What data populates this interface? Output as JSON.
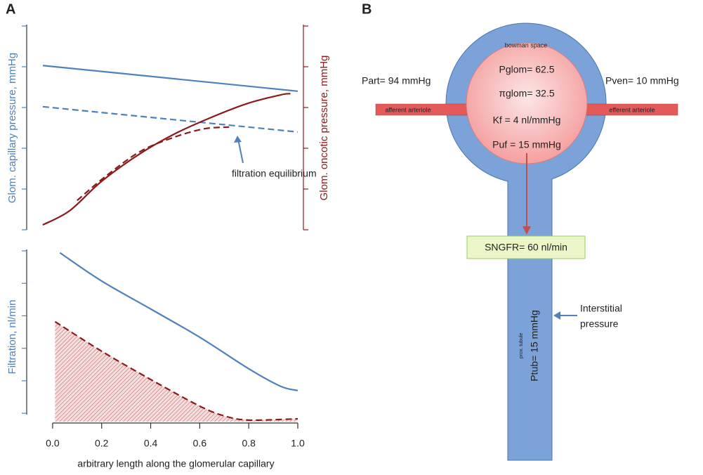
{
  "panels": [
    {
      "label": "A"
    },
    {
      "label": "B"
    }
  ],
  "chart_data": [
    {
      "type": "line",
      "ylabel": "Glom. capillary pressure, mmHg",
      "y2label": "Glom. oncotic pressure, mmHg",
      "annotation": "filtration equilibrium",
      "xlim": [
        -0.1,
        1.02
      ],
      "ylim": [
        0,
        5
      ],
      "yticks": [
        0,
        1,
        2,
        3,
        4,
        5
      ],
      "y2lim": [
        0,
        5
      ],
      "y2ticks": [
        0,
        1,
        2,
        3,
        4,
        5
      ],
      "series": [
        {
          "color": "#4f81bd",
          "dashed": false,
          "x": [
            -0.04,
            1.0
          ],
          "values": [
            4.03,
            3.4
          ]
        },
        {
          "color": "#4f81bd",
          "dashed": true,
          "x": [
            -0.04,
            1.0
          ],
          "values": [
            3.02,
            2.4
          ]
        },
        {
          "color": "#8b1a1a",
          "dashed": false,
          "axis": "y2",
          "x": [
            -0.04,
            0.07,
            0.2,
            0.36,
            0.5,
            0.64,
            0.79,
            0.93,
            0.97
          ],
          "values": [
            0.12,
            0.47,
            1.19,
            1.88,
            2.36,
            2.74,
            3.09,
            3.31,
            3.34
          ]
        },
        {
          "color": "#8b1a1a",
          "dashed": true,
          "axis": "y2",
          "x": [
            0.1,
            0.22,
            0.36,
            0.5,
            0.62,
            0.72
          ],
          "values": [
            0.72,
            1.33,
            1.93,
            2.28,
            2.48,
            2.52
          ]
        }
      ]
    },
    {
      "type": "line",
      "ylabel": "Filtration, nl/min",
      "xlabel": "arbitrary length along the glomerular capillary",
      "xlim": [
        -0.1,
        1.02
      ],
      "xticks": [
        {
          "value": 0,
          "label": "0.0"
        },
        0.2,
        0.4,
        0.6,
        0.8,
        {
          "value": 1,
          "label": "1.0"
        }
      ],
      "ylim": [
        -0.3,
        5
      ],
      "yticks": [
        0,
        1,
        2,
        3,
        4,
        5
      ],
      "series": [
        {
          "color": "#4f81bd",
          "dashed": false,
          "x": [
            0.03,
            0.2,
            0.4,
            0.6,
            0.8,
            0.93,
            1.0
          ],
          "values": [
            4.94,
            4.07,
            3.21,
            2.34,
            1.37,
            0.83,
            0.7
          ]
        },
        {
          "color": "#8b1a1a",
          "dashed": true,
          "hatched": true,
          "x": [
            0.01,
            0.2,
            0.4,
            0.6,
            0.7,
            0.8,
            1.0
          ],
          "values": [
            2.82,
            1.91,
            1.04,
            0.22,
            -0.08,
            -0.21,
            -0.17
          ]
        }
      ]
    }
  ],
  "diagram": {
    "bowman": "bowman space",
    "glomerulus": [
      "Pglom= 62.5",
      "πglom= 32.5",
      "Kf = 4 nl/mmHg",
      "Puf = 15 mmHg"
    ],
    "afferent": "afferent arteriole",
    "efferent": "efferent arteriole",
    "part": "Part= 94 mmHg",
    "pven": "Pven= 10 mmHg",
    "sngfr": "SNGFR= 60 nl/min",
    "tubule": "prox. tubule",
    "ptub": "Ptub= 15 mmHg",
    "interstitial": [
      "Interstitial",
      "pressure"
    ]
  }
}
